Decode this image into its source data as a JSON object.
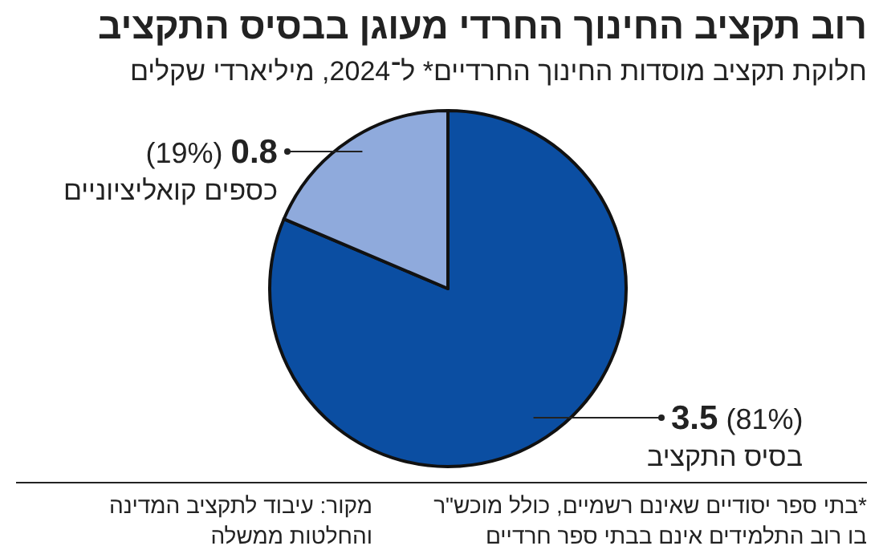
{
  "chart_data": {
    "type": "pie",
    "title": "רוב תקציב החינוך החרדי מעוגן בבסיס התקציב",
    "subtitle": "חלוקת תקציב מוסדות החינוך החרדיים* ל־2024, מיליארדי שקלים",
    "categories": [
      "בסיס התקציב",
      "כספים קואליציוניים"
    ],
    "values": [
      3.5,
      0.8
    ],
    "colors": [
      "#0b4ea2",
      "#8faadc"
    ],
    "value_labels": [
      "3.5 (81%)",
      "(19%) 0.8"
    ],
    "annotations": [
      "*בתי ספר יסודיים שאינם רשמיים, כולל מוכש\"ר\nבו רוב התלמידים אינם בבתי ספר חרדיים",
      "מקור: עיבוד לתקציב המדינה\nוהחלטות ממשלה"
    ]
  }
}
